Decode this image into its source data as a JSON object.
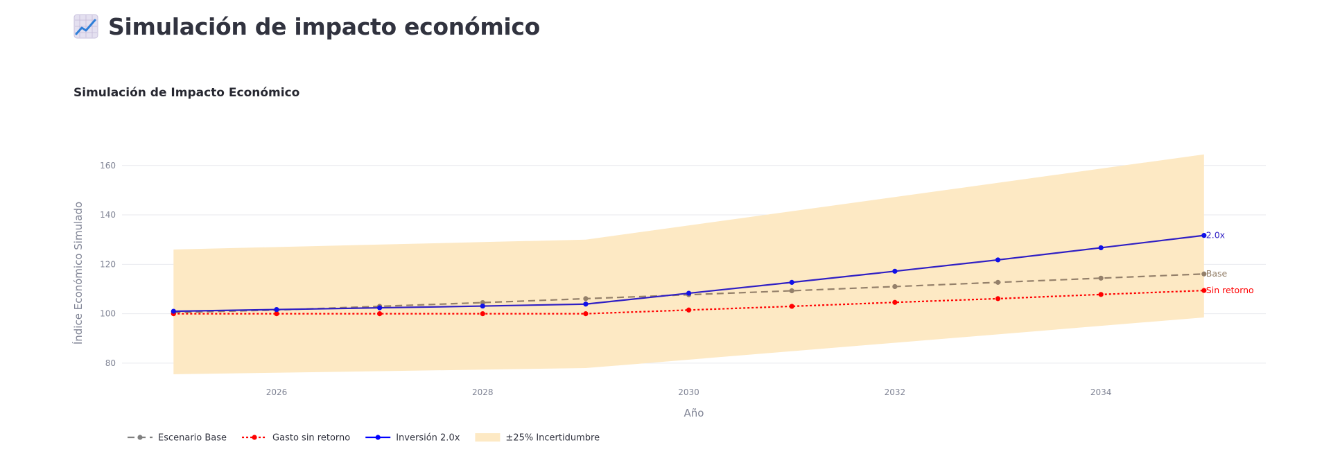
{
  "header": {
    "title": "Simulación de impacto económico",
    "icon": "chart-increasing-icon"
  },
  "chart_data": {
    "type": "line",
    "title": "Simulación de Impacto Económico",
    "xlabel": "Año",
    "ylabel": "Índice Económico Simulado",
    "xlim": [
      2024.5,
      2035.6
    ],
    "ylim": [
      71,
      172
    ],
    "grid": true,
    "x_ticks": [
      2026,
      2028,
      2030,
      2032,
      2034
    ],
    "y_ticks": [
      80,
      100,
      120,
      140,
      160
    ],
    "x": [
      2025,
      2026,
      2027,
      2028,
      2029,
      2030,
      2031,
      2032,
      2033,
      2034,
      2035
    ],
    "series": [
      {
        "name": "Escenario Base",
        "end_label": "Base",
        "color": "#94806a",
        "legend_color": "#808080",
        "dash": "dash",
        "values": [
          100.5,
          101.5,
          103.0,
          104.5,
          106.1,
          107.7,
          109.3,
          111.0,
          112.7,
          114.4,
          116.1
        ]
      },
      {
        "name": "Gasto sin retorno",
        "end_label": "Sin retorno",
        "color": "#ff0000",
        "dash": "dot",
        "values": [
          100.0,
          100.0,
          100.0,
          100.0,
          100.0,
          101.5,
          103.0,
          104.6,
          106.1,
          107.8,
          109.4
        ]
      },
      {
        "name": "Inversión 2.0x",
        "end_label": "2.0x",
        "color": "#2f1fc4",
        "legend_color": "#0000ff",
        "marker_color": "#1010e8",
        "dash": "solid",
        "values": [
          101.0,
          101.7,
          102.4,
          103.1,
          103.9,
          108.3,
          112.7,
          117.2,
          121.8,
          126.7,
          131.7
        ]
      }
    ],
    "band": {
      "name": "±25% Incertidumbre",
      "color": "#fde9c4",
      "x": [
        2025,
        2029,
        2035
      ],
      "upper": [
        126.0,
        130.0,
        164.5
      ],
      "lower": [
        75.5,
        78.0,
        98.5
      ]
    },
    "legend_position": "bottom-left"
  }
}
